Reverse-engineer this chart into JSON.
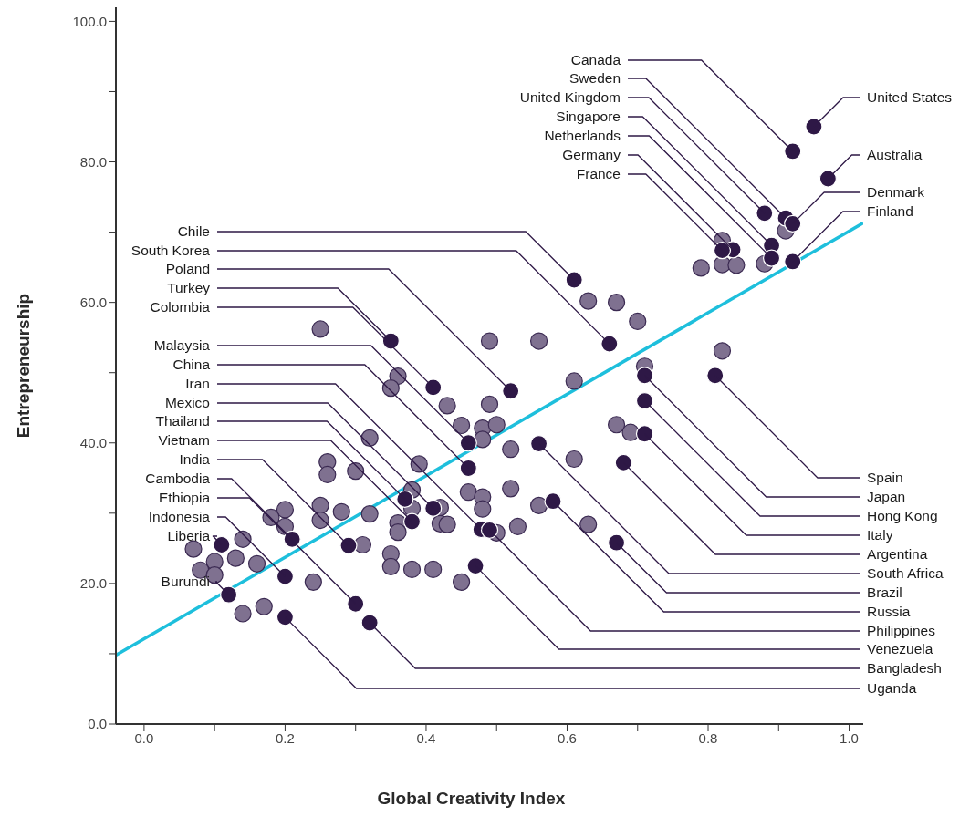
{
  "chart_data": {
    "type": "scatter",
    "xlabel": "Global Creativity Index",
    "ylabel": "Entrepreneurship",
    "xlim": [
      -0.04,
      1.02
    ],
    "ylim": [
      0,
      102
    ],
    "xticks": [
      {
        "value": 0,
        "label": "0.0"
      },
      {
        "value": 0.1,
        "label": null
      },
      {
        "value": 0.2,
        "label": "0.2"
      },
      {
        "value": 0.3,
        "label": null
      },
      {
        "value": 0.4,
        "label": "0.4"
      },
      {
        "value": 0.5,
        "label": null
      },
      {
        "value": 0.6,
        "label": "0.6"
      },
      {
        "value": 0.7,
        "label": null
      },
      {
        "value": 0.8,
        "label": "0.8"
      },
      {
        "value": 0.9,
        "label": null
      },
      {
        "value": 1.0,
        "label": "1.0"
      }
    ],
    "yticks": [
      {
        "value": 0,
        "label": "0.0"
      },
      {
        "value": 10,
        "label": null
      },
      {
        "value": 20,
        "label": "20.0"
      },
      {
        "value": 30,
        "label": null
      },
      {
        "value": 40,
        "label": "40.0"
      },
      {
        "value": 50,
        "label": null
      },
      {
        "value": 60,
        "label": "60.0"
      },
      {
        "value": 70,
        "label": null
      },
      {
        "value": 80,
        "label": "80.0"
      },
      {
        "value": 90,
        "label": null
      },
      {
        "value": 100,
        "label": "100.0"
      }
    ],
    "marker": "circle",
    "series": [
      {
        "type": "scatter",
        "color": "#7f7190",
        "x": [
          0.25,
          0.49,
          0.56,
          0.63,
          0.67,
          0.7,
          0.82,
          0.71,
          0.61,
          0.36,
          0.35,
          0.43,
          0.45,
          0.49,
          0.48,
          0.5,
          0.48,
          0.52,
          0.67,
          0.69,
          0.32,
          0.39,
          0.26,
          0.26,
          0.3,
          0.61,
          0.46,
          0.48,
          0.48,
          0.52,
          0.56,
          0.25,
          0.25,
          0.28,
          0.32,
          0.38,
          0.38,
          0.36,
          0.36,
          0.42,
          0.42,
          0.43,
          0.5,
          0.53,
          0.63,
          0.31,
          0.35,
          0.35,
          0.38,
          0.41,
          0.45,
          0.24,
          0.2,
          0.18,
          0.2,
          0.14,
          0.07,
          0.1,
          0.13,
          0.08,
          0.1,
          0.16,
          0.14,
          0.17,
          0.82,
          0.82,
          0.84,
          0.79,
          0.88,
          0.91
        ],
        "values": [
          56.2,
          54.5,
          54.5,
          60.2,
          60.0,
          57.3,
          53.1,
          50.9,
          48.8,
          49.5,
          47.8,
          45.3,
          42.5,
          45.5,
          42.1,
          42.6,
          40.5,
          39.1,
          42.6,
          41.5,
          40.7,
          37.0,
          37.3,
          35.5,
          36.0,
          37.7,
          33.0,
          32.3,
          30.6,
          33.5,
          31.1,
          31.1,
          29.0,
          30.2,
          29.9,
          33.3,
          30.7,
          28.6,
          27.3,
          30.8,
          28.5,
          28.4,
          27.2,
          28.1,
          28.4,
          25.5,
          24.2,
          22.4,
          22.0,
          22.0,
          20.2,
          20.2,
          30.5,
          29.4,
          28.1,
          26.3,
          24.9,
          23.1,
          23.6,
          21.9,
          21.2,
          22.8,
          15.7,
          16.7,
          68.8,
          65.4,
          65.3,
          64.9,
          65.5,
          70.2
        ]
      },
      {
        "type": "line",
        "marker": "none",
        "color": "#1ebfdc",
        "x": [
          -0.04,
          1.02
        ],
        "values": [
          9.8,
          71.3
        ]
      },
      {
        "type": "scatter",
        "color": "#2e1846",
        "x": [
          0.92,
          0.91,
          0.88,
          0.89,
          0.89,
          0.835,
          0.82,
          0.95,
          0.97,
          0.92,
          0.92,
          0.61,
          0.66,
          0.52,
          0.35,
          0.41,
          0.46,
          0.46,
          0.478,
          0.41,
          0.37,
          0.38,
          0.29,
          0.21,
          0.3,
          0.2,
          0.11,
          0.12,
          0.81,
          0.71,
          0.71,
          0.71,
          0.68,
          0.56,
          0.67,
          0.58,
          0.49,
          0.47,
          0.32,
          0.2
        ],
        "values": [
          81.5,
          72.0,
          72.7,
          68.1,
          66.3,
          67.5,
          67.4,
          85.0,
          77.6,
          71.2,
          65.8,
          63.2,
          54.1,
          47.4,
          54.5,
          47.9,
          40.0,
          36.4,
          27.7,
          30.7,
          32.0,
          28.8,
          25.4,
          26.3,
          17.1,
          21.0,
          25.5,
          18.4,
          49.6,
          49.6,
          46.0,
          41.3,
          37.2,
          39.9,
          25.8,
          31.7,
          27.6,
          22.5,
          14.4,
          15.2
        ]
      }
    ],
    "annotations": [
      {
        "text": "Canada",
        "x": 0.92,
        "y": 81.5
      },
      {
        "text": "Sweden",
        "x": 0.91,
        "y": 72.0
      },
      {
        "text": "United Kingdom",
        "x": 0.88,
        "y": 72.7
      },
      {
        "text": "Singapore",
        "x": 0.89,
        "y": 68.1
      },
      {
        "text": "Netherlands",
        "x": 0.89,
        "y": 66.3
      },
      {
        "text": "Germany",
        "x": 0.835,
        "y": 67.5
      },
      {
        "text": "France",
        "x": 0.82,
        "y": 67.4
      },
      {
        "text": "United States",
        "x": 0.95,
        "y": 85.0
      },
      {
        "text": "Australia",
        "x": 0.97,
        "y": 77.6
      },
      {
        "text": "Denmark",
        "x": 0.92,
        "y": 71.2
      },
      {
        "text": "Finland",
        "x": 0.92,
        "y": 65.8
      },
      {
        "text": "Chile",
        "x": 0.61,
        "y": 63.2
      },
      {
        "text": "South Korea",
        "x": 0.66,
        "y": 54.1
      },
      {
        "text": "Poland",
        "x": 0.52,
        "y": 47.4
      },
      {
        "text": "Turkey",
        "x": 0.35,
        "y": 54.5
      },
      {
        "text": "Colombia",
        "x": 0.41,
        "y": 47.9
      },
      {
        "text": "Malaysia",
        "x": 0.46,
        "y": 40.0
      },
      {
        "text": "China",
        "x": 0.46,
        "y": 36.4
      },
      {
        "text": "Iran",
        "x": 0.478,
        "y": 27.7
      },
      {
        "text": "Mexico",
        "x": 0.41,
        "y": 30.7
      },
      {
        "text": "Thailand",
        "x": 0.37,
        "y": 32.0
      },
      {
        "text": "Vietnam",
        "x": 0.38,
        "y": 28.8
      },
      {
        "text": "India",
        "x": 0.29,
        "y": 25.4
      },
      {
        "text": "Cambodia",
        "x": 0.21,
        "y": 26.3
      },
      {
        "text": "Ethiopia",
        "x": 0.3,
        "y": 17.1
      },
      {
        "text": "Indonesia",
        "x": 0.2,
        "y": 21.0
      },
      {
        "text": "Liberia",
        "x": 0.11,
        "y": 25.5
      },
      {
        "text": "Burundi",
        "x": 0.12,
        "y": 18.4
      },
      {
        "text": "Spain",
        "x": 0.81,
        "y": 49.6
      },
      {
        "text": "Japan",
        "x": 0.71,
        "y": 49.6
      },
      {
        "text": "Hong Kong",
        "x": 0.71,
        "y": 46.0
      },
      {
        "text": "Italy",
        "x": 0.71,
        "y": 41.3
      },
      {
        "text": "Argentina",
        "x": 0.68,
        "y": 37.2
      },
      {
        "text": "South Africa",
        "x": 0.56,
        "y": 39.9
      },
      {
        "text": "Brazil",
        "x": 0.67,
        "y": 25.8
      },
      {
        "text": "Russia",
        "x": 0.58,
        "y": 31.7
      },
      {
        "text": "Philippines",
        "x": 0.49,
        "y": 27.6
      },
      {
        "text": "Venezuela",
        "x": 0.47,
        "y": 22.5
      },
      {
        "text": "Bangladesh",
        "x": 0.32,
        "y": 14.4
      },
      {
        "text": "Uganda",
        "x": 0.2,
        "y": 15.2
      }
    ]
  }
}
